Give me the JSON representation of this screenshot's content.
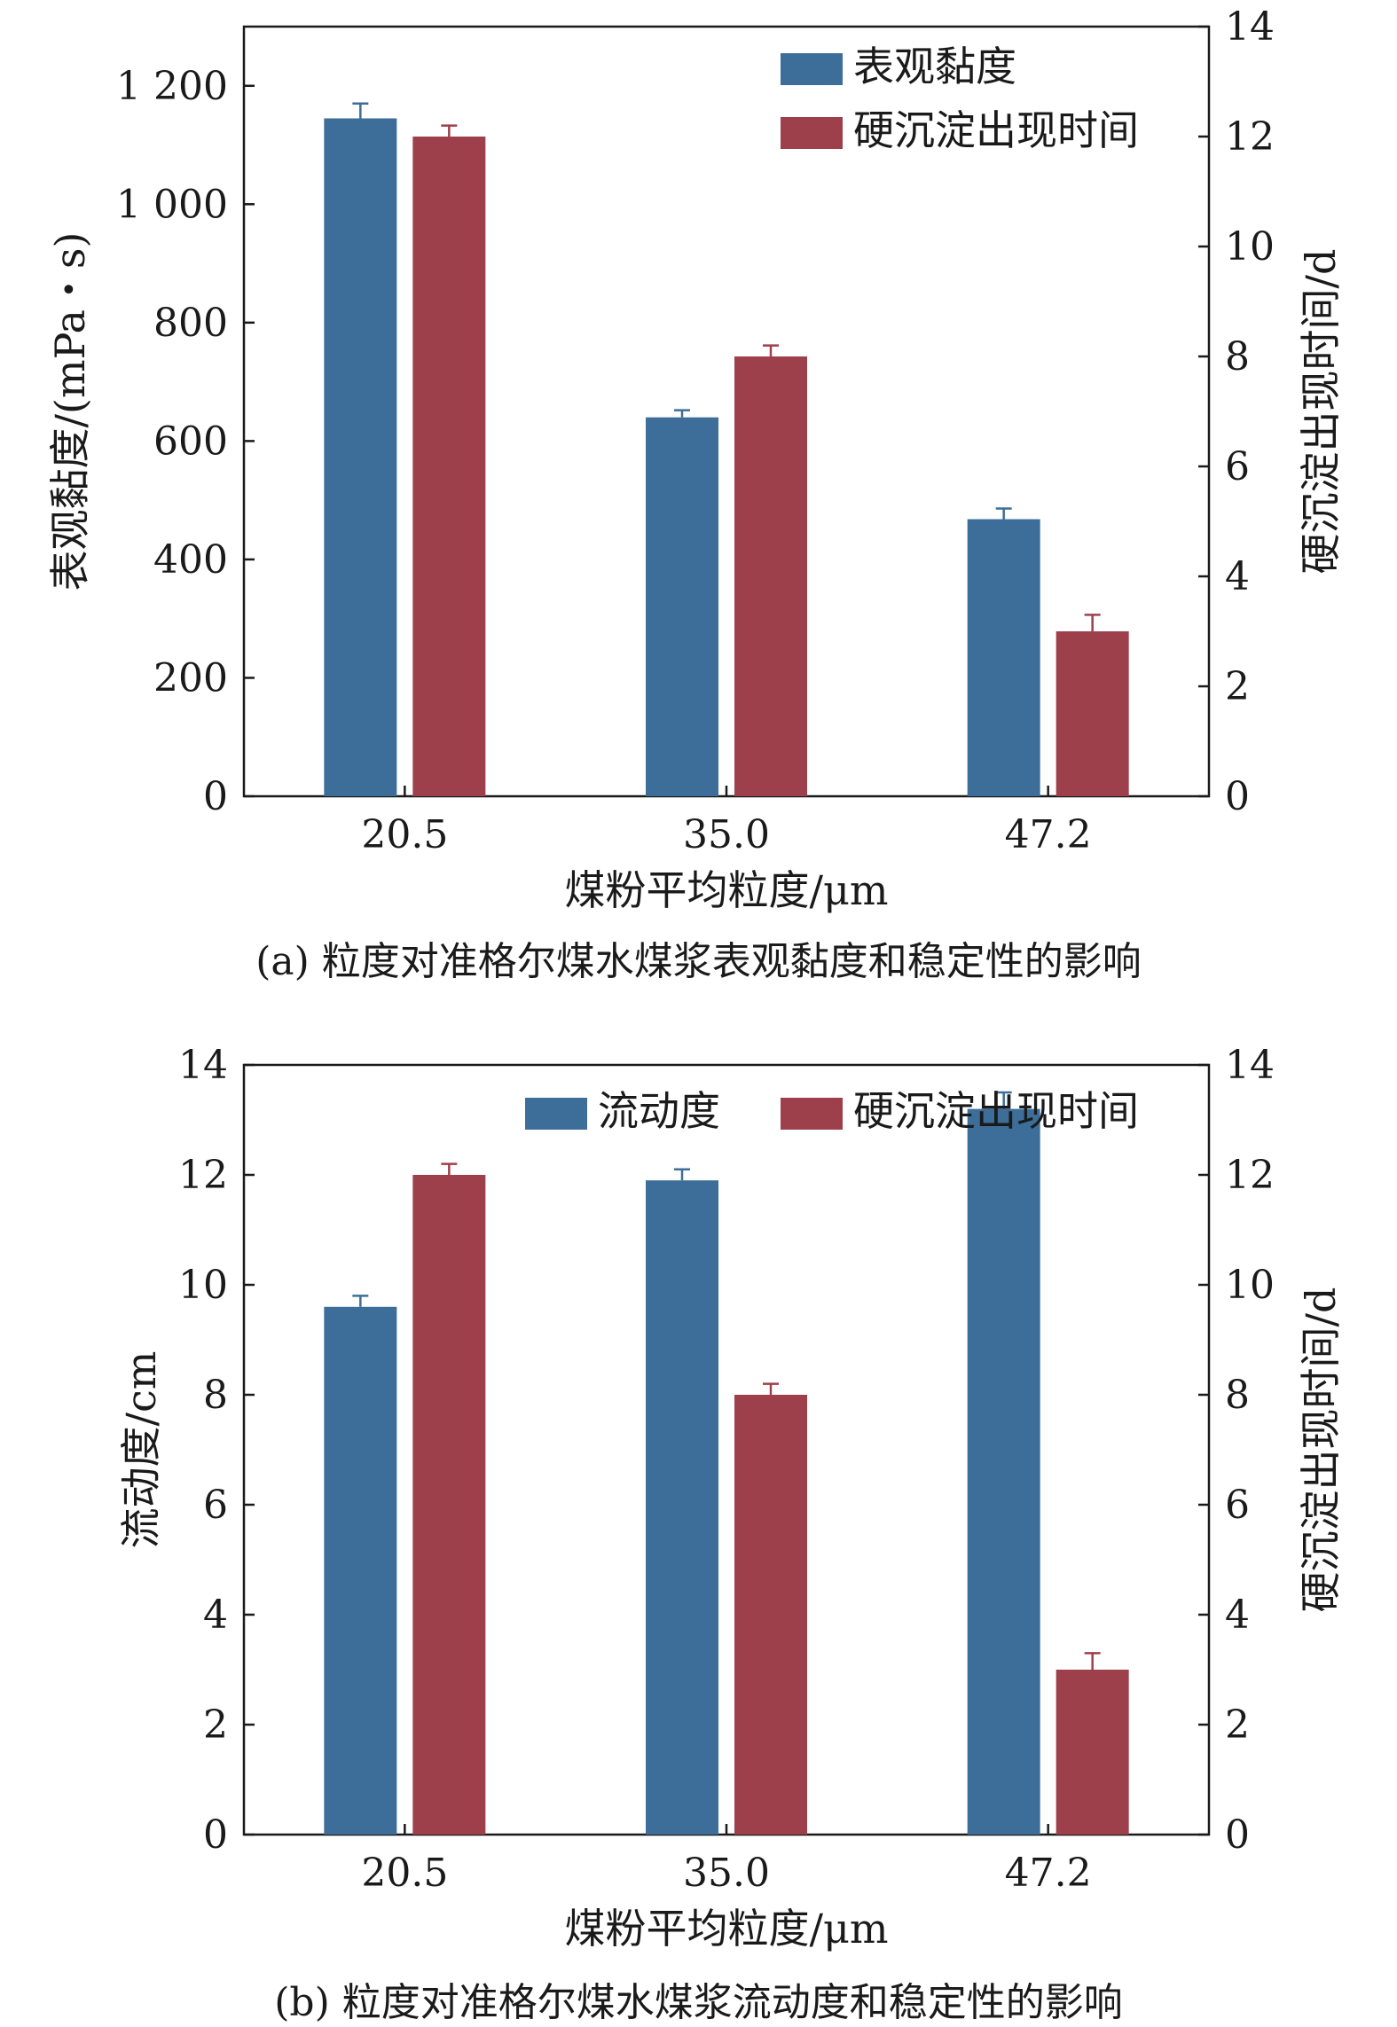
{
  "chart_data": [
    {
      "type": "bar",
      "categories": [
        "20.5",
        "35.0",
        "47.2"
      ],
      "xlabel": "煤粉平均粒度/μm",
      "ylabel_left": "表观黏度/(mPa・s)",
      "ylabel_right": "硬沉淀出现时间/d",
      "ylim_left": [
        0,
        1300
      ],
      "yticks_left": [
        0,
        200,
        400,
        600,
        800,
        1000,
        1200
      ],
      "ytick_labels_left": [
        "0",
        "200",
        "400",
        "600",
        "800",
        "1 000",
        "1 200"
      ],
      "ylim_right": [
        0,
        14
      ],
      "yticks_right": [
        0,
        2,
        4,
        6,
        8,
        10,
        12,
        14
      ],
      "ytick_labels_right": [
        "0",
        "2",
        "4",
        "6",
        "8",
        "10",
        "12",
        "14"
      ],
      "grid": false,
      "legend": "top-right",
      "series": [
        {
          "name": "表观黏度",
          "axis": "left",
          "color": "#3d6e99",
          "values": [
            1145,
            640,
            468
          ],
          "errors": [
            25,
            12,
            18
          ]
        },
        {
          "name": "硬沉淀出现时间",
          "axis": "right",
          "color": "#9e404c",
          "values": [
            12.0,
            8.0,
            3.0
          ],
          "errors": [
            0.2,
            0.2,
            0.3
          ]
        }
      ],
      "caption": "(a) 粒度对准格尔煤水煤浆表观黏度和稳定性的影响"
    },
    {
      "type": "bar",
      "categories": [
        "20.5",
        "35.0",
        "47.2"
      ],
      "xlabel": "煤粉平均粒度/μm",
      "ylabel_left": "流动度/cm",
      "ylabel_right": "硬沉淀出现时间/d",
      "ylim_left": [
        0,
        14.0
      ],
      "yticks_left": [
        0,
        2,
        4,
        6,
        8,
        10,
        12,
        14
      ],
      "ytick_labels_left": [
        "0",
        "2",
        "4",
        "6",
        "8",
        "10",
        "12",
        "14"
      ],
      "ylim_right": [
        0,
        14
      ],
      "yticks_right": [
        0,
        2,
        4,
        6,
        8,
        10,
        12,
        14
      ],
      "ytick_labels_right": [
        "0",
        "2",
        "4",
        "6",
        "8",
        "10",
        "12",
        "14"
      ],
      "grid": false,
      "legend": "top-right",
      "series": [
        {
          "name": "流动度",
          "axis": "left",
          "color": "#3d6e99",
          "values": [
            9.6,
            11.9,
            13.2
          ],
          "errors": [
            0.2,
            0.2,
            0.3
          ]
        },
        {
          "name": "硬沉淀出现时间",
          "axis": "right",
          "color": "#9e404c",
          "values": [
            12.0,
            8.0,
            3.0
          ],
          "errors": [
            0.2,
            0.2,
            0.3
          ]
        }
      ],
      "caption": "(b) 粒度对准格尔煤水煤浆流动度和稳定性的影响"
    }
  ]
}
